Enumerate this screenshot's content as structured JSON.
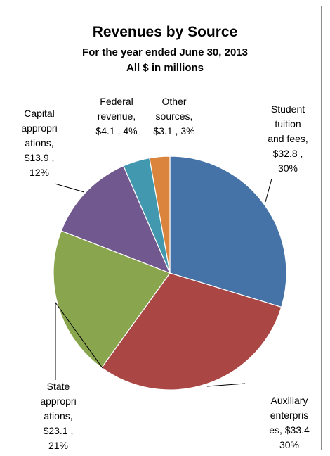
{
  "chart_data": {
    "type": "pie",
    "title": "Revenues by Source",
    "subtitle": "For the year ended June 30, 2013",
    "subtitle2": "All $ in millions",
    "slices": [
      {
        "name": "Student tuition and fees",
        "value": 32.8,
        "percent": "30%",
        "color": "#4572a7",
        "label_lines": [
          "Student",
          "tuition",
          "and fees,",
          "$32.8 ,",
          "30%"
        ]
      },
      {
        "name": "Auxiliary enterprises",
        "value": 33.4,
        "percent": "30%",
        "color": "#aa4643",
        "label_lines": [
          "Auxiliary",
          "enterpris",
          "es,  $33.4",
          "30%"
        ]
      },
      {
        "name": "State appropriations",
        "value": 23.1,
        "percent": "21%",
        "color": "#89a54e",
        "label_lines": [
          "State",
          "appropri",
          "ations,",
          "$23.1 ,",
          "21%"
        ]
      },
      {
        "name": "Capital appropriations",
        "value": 13.9,
        "percent": "12%",
        "color": "#71588f",
        "label_lines": [
          "Capital",
          "appropri",
          "ations,",
          "$13.9 ,",
          "12%"
        ]
      },
      {
        "name": "Federal revenue",
        "value": 4.1,
        "percent": "4%",
        "color": "#4198af",
        "label_lines": [
          "Federal",
          "revenue,",
          "$4.1 , 4%"
        ]
      },
      {
        "name": "Other sources",
        "value": 3.1,
        "percent": "3%",
        "color": "#db843d",
        "label_lines": [
          "Other",
          "sources,",
          "$3.1 , 3%"
        ]
      }
    ]
  }
}
